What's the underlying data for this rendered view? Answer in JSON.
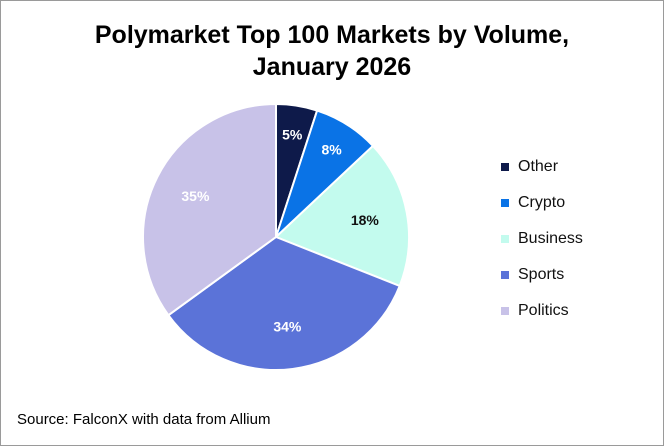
{
  "chart_data": {
    "type": "pie",
    "title_lines": [
      "Polymarket Top 100 Markets by Volume,",
      "January 2026"
    ],
    "categories": [
      "Other",
      "Crypto",
      "Business",
      "Sports",
      "Politics"
    ],
    "values": [
      5,
      8,
      18,
      34,
      35
    ],
    "labels": [
      "5%",
      "8%",
      "18%",
      "34%",
      "35%"
    ],
    "colors": [
      "#0e1a4a",
      "#0a73e6",
      "#c3fbee",
      "#5b73d8",
      "#c8c2e8"
    ],
    "label_colors": [
      "#ffffff",
      "#ffffff",
      "#111111",
      "#ffffff",
      "#ffffff"
    ],
    "legend_position": "right"
  },
  "source": "Source: FalconX with data from Allium"
}
